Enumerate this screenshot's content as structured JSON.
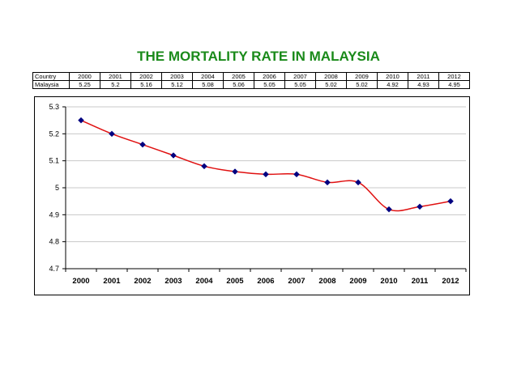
{
  "chart_data": {
    "type": "line",
    "title": "THE MORTALITY RATE IN MALAYSIA",
    "categories": [
      "2000",
      "2001",
      "2002",
      "2003",
      "2004",
      "2005",
      "2006",
      "2007",
      "2008",
      "2009",
      "2010",
      "2011",
      "2012"
    ],
    "series": [
      {
        "name": "Malaysia",
        "values": [
          5.25,
          5.2,
          5.16,
          5.12,
          5.08,
          5.06,
          5.05,
          5.05,
          5.02,
          5.02,
          4.92,
          4.93,
          4.95
        ]
      }
    ],
    "ylim": [
      4.7,
      5.3
    ],
    "yticks": [
      "4.7",
      "4.8",
      "4.9",
      "5",
      "5.1",
      "5.2",
      "5.3"
    ],
    "grid": true,
    "line_color": "#e01010",
    "marker_color": "#000080",
    "title_color": "#1a8a1a"
  },
  "table": {
    "header_label": "Country",
    "row_label": "Malaysia",
    "years": [
      "2000",
      "2001",
      "2002",
      "2003",
      "2004",
      "2005",
      "2006",
      "2007",
      "2008",
      "2009",
      "2010",
      "2011",
      "2012"
    ],
    "values": [
      "5.25",
      "5.2",
      "5.16",
      "5.12",
      "5.08",
      "5.06",
      "5.05",
      "5.05",
      "5.02",
      "5.02",
      "4.92",
      "4.93",
      "4.95"
    ]
  }
}
